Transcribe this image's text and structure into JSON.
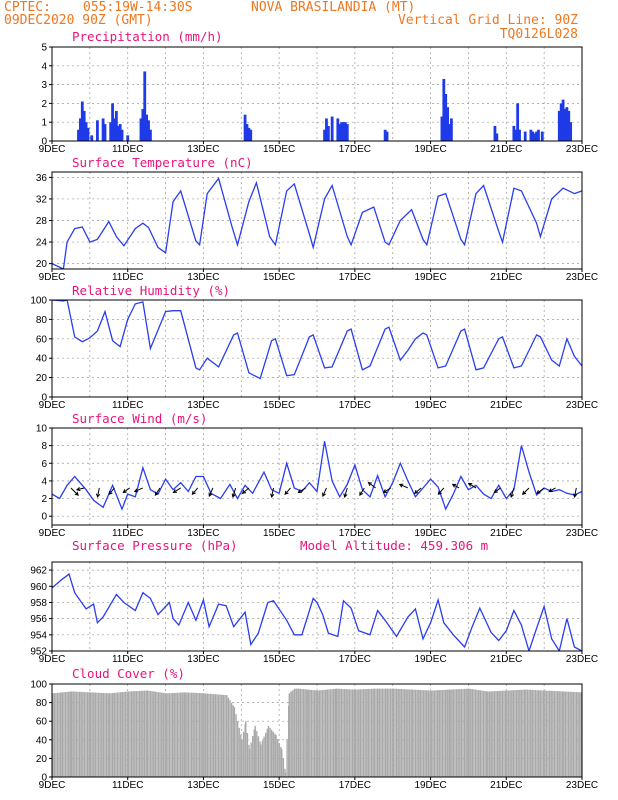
{
  "header": {
    "source": "CPTEC:",
    "coords": "055:19W-14:30S",
    "station": "NOVA BRASILANDIA (MT)",
    "run": "09DEC2020 90Z (GMT)",
    "grid_note": "Vertical Grid Line: 90Z",
    "model": "TQ0126L028"
  },
  "x_labels": [
    "9DEC",
    "11DEC",
    "13DEC",
    "15DEC",
    "17DEC",
    "19DEC",
    "21DEC",
    "23DEC"
  ],
  "extra_title": "Model Altitude: 459.306 m",
  "colors": {
    "header": "#ee7722",
    "title": "#e8147a",
    "series": "#2a3ef0",
    "bars": "#1f3be8",
    "cloud": "#a9a9a9"
  },
  "chart_data": [
    {
      "type": "bar",
      "title": "Precipitation (mm/h)",
      "ylim": [
        0,
        5
      ],
      "yticks": [
        0,
        1,
        2,
        3,
        4,
        5
      ],
      "x_unit": "days since 9DEC 00Z",
      "x": [
        0.7,
        0.75,
        0.8,
        0.85,
        0.9,
        0.95,
        1.05,
        1.2,
        1.35,
        1.4,
        1.55,
        1.6,
        1.65,
        1.7,
        1.75,
        1.8,
        1.85,
        2.0,
        2.35,
        2.4,
        2.45,
        2.5,
        2.55,
        2.6,
        5.1,
        5.15,
        5.2,
        5.25,
        7.2,
        7.25,
        7.3,
        7.4,
        7.55,
        7.6,
        7.65,
        7.7,
        7.75,
        7.8,
        8.8,
        8.85,
        10.3,
        10.35,
        10.4,
        10.45,
        10.5,
        10.55,
        11.7,
        11.75,
        12.2,
        12.25,
        12.3,
        12.35,
        12.5,
        12.65,
        12.7,
        12.75,
        12.8,
        12.85,
        12.95,
        13.4,
        13.45,
        13.5,
        13.55,
        13.6,
        13.65,
        13.7
      ],
      "values": [
        0.6,
        1.2,
        2.1,
        1.6,
        1.0,
        0.7,
        0.3,
        1.1,
        1.2,
        0.9,
        1.0,
        2.0,
        1.2,
        1.6,
        0.8,
        0.9,
        0.6,
        0.3,
        1.2,
        1.7,
        3.7,
        1.4,
        1.1,
        0.6,
        1.4,
        0.9,
        0.7,
        0.6,
        0.6,
        1.2,
        0.8,
        1.3,
        1.2,
        0.9,
        1.0,
        1.0,
        1.0,
        0.9,
        0.6,
        0.5,
        1.3,
        3.3,
        2.5,
        1.8,
        0.9,
        1.2,
        0.8,
        0.4,
        0.8,
        0.6,
        2.0,
        0.6,
        0.5,
        0.6,
        0.5,
        0.4,
        0.5,
        0.6,
        0.5,
        1.6,
        2.0,
        2.2,
        1.7,
        1.8,
        1.6,
        1.0
      ]
    },
    {
      "type": "line",
      "title": "Surface Temperature (nC)",
      "ylim": [
        19,
        37
      ],
      "yticks": [
        20,
        24,
        28,
        32,
        36
      ],
      "x_unit": "days since 9DEC 00Z",
      "x": [
        0.0,
        0.3,
        0.4,
        0.6,
        0.8,
        1.0,
        1.2,
        1.5,
        1.7,
        1.9,
        2.2,
        2.4,
        2.55,
        2.8,
        3.0,
        3.2,
        3.4,
        3.8,
        3.9,
        4.1,
        4.4,
        4.75,
        4.9,
        5.2,
        5.4,
        5.75,
        5.9,
        6.2,
        6.4,
        6.8,
        6.9,
        7.2,
        7.4,
        7.8,
        7.9,
        8.2,
        8.5,
        8.8,
        8.9,
        9.2,
        9.5,
        9.8,
        9.9,
        10.2,
        10.4,
        10.8,
        10.9,
        11.2,
        11.4,
        11.8,
        11.9,
        12.2,
        12.4,
        12.8,
        12.9,
        13.2,
        13.5,
        13.8,
        14.0
      ],
      "values": [
        20.0,
        19.0,
        24.0,
        26.5,
        26.8,
        24.0,
        24.5,
        27.8,
        25.0,
        23.3,
        26.5,
        27.5,
        26.7,
        23.0,
        22.0,
        31.5,
        33.5,
        24.2,
        23.5,
        33.0,
        35.8,
        27.0,
        23.5,
        31.5,
        35.0,
        25.0,
        23.5,
        33.5,
        34.8,
        25.5,
        23.0,
        32.0,
        34.5,
        25.0,
        23.5,
        29.5,
        30.5,
        24.0,
        23.5,
        28.0,
        30.0,
        24.5,
        23.5,
        32.5,
        33.0,
        24.5,
        23.5,
        33.0,
        34.5,
        26.0,
        24.0,
        34.0,
        33.5,
        27.5,
        25.0,
        32.0,
        34.0,
        33.0,
        33.5
      ]
    },
    {
      "type": "line",
      "title": "Relative Humidity (%)",
      "ylim": [
        0,
        100
      ],
      "yticks": [
        0,
        20,
        40,
        60,
        80,
        100
      ],
      "x_unit": "days since 9DEC 00Z",
      "x": [
        0.0,
        0.3,
        0.4,
        0.6,
        0.8,
        1.0,
        1.2,
        1.4,
        1.6,
        1.8,
        2.0,
        2.2,
        2.4,
        2.6,
        3.0,
        3.2,
        3.4,
        3.8,
        3.9,
        4.1,
        4.4,
        4.8,
        4.9,
        5.2,
        5.5,
        5.8,
        5.9,
        6.2,
        6.4,
        6.8,
        6.9,
        7.2,
        7.4,
        7.8,
        7.9,
        8.2,
        8.4,
        8.8,
        8.9,
        9.2,
        9.4,
        9.6,
        9.8,
        9.9,
        10.2,
        10.4,
        10.8,
        10.9,
        11.2,
        11.4,
        11.8,
        11.9,
        12.2,
        12.4,
        12.8,
        12.9,
        13.2,
        13.4,
        13.6,
        13.8,
        14.0
      ],
      "values": [
        100,
        99,
        100,
        62,
        57,
        61,
        68,
        88,
        58,
        52,
        80,
        96,
        98,
        50,
        88,
        89,
        89,
        30,
        28,
        40,
        31,
        64,
        66,
        25,
        19,
        58,
        60,
        22,
        23,
        62,
        64,
        30,
        31,
        68,
        70,
        28,
        32,
        70,
        72,
        38,
        48,
        60,
        66,
        64,
        30,
        32,
        68,
        70,
        28,
        30,
        60,
        62,
        30,
        32,
        64,
        62,
        38,
        32,
        60,
        42,
        32
      ]
    },
    {
      "type": "line",
      "title": "Surface Wind (m/s)",
      "ylim": [
        -1,
        10
      ],
      "yticks": [
        0,
        2,
        4,
        6,
        8,
        10
      ],
      "x_unit": "days since 9DEC 00Z",
      "x": [
        0.0,
        0.2,
        0.4,
        0.6,
        0.9,
        1.1,
        1.35,
        1.6,
        1.85,
        2.0,
        2.2,
        2.4,
        2.6,
        2.8,
        3.0,
        3.2,
        3.4,
        3.6,
        3.8,
        4.0,
        4.2,
        4.45,
        4.7,
        4.9,
        5.1,
        5.3,
        5.6,
        5.8,
        6.0,
        6.2,
        6.4,
        6.6,
        6.8,
        7.0,
        7.2,
        7.4,
        7.6,
        7.8,
        8.0,
        8.2,
        8.4,
        8.6,
        8.8,
        9.0,
        9.2,
        9.4,
        9.6,
        9.8,
        10.0,
        10.2,
        10.4,
        10.6,
        10.8,
        11.0,
        11.2,
        11.4,
        11.6,
        11.8,
        12.0,
        12.2,
        12.4,
        12.6,
        12.8,
        13.0,
        13.2,
        13.4,
        13.6,
        13.8,
        14.0
      ],
      "values": [
        2.5,
        2.0,
        3.5,
        4.5,
        3.0,
        1.8,
        1.0,
        3.5,
        0.8,
        2.5,
        2.2,
        5.5,
        3.0,
        2.5,
        4.2,
        3.0,
        3.8,
        2.8,
        4.5,
        4.5,
        2.6,
        2.0,
        3.6,
        2.0,
        3.5,
        2.6,
        5.0,
        3.0,
        2.6,
        6.0,
        3.2,
        2.8,
        3.8,
        2.8,
        8.5,
        4.0,
        2.2,
        3.6,
        5.8,
        3.0,
        2.2,
        4.6,
        2.2,
        3.8,
        6.0,
        4.0,
        2.2,
        3.2,
        4.2,
        3.3,
        0.8,
        2.5,
        4.5,
        3.0,
        3.5,
        2.5,
        2.0,
        3.5,
        2.0,
        3.0,
        8.0,
        5.0,
        2.4,
        3.2,
        2.8,
        3.0,
        2.6,
        2.4,
        2.8
      ],
      "barbs": [
        {
          "x": 0.5,
          "u": 0.8,
          "v": -0.8
        },
        {
          "x": 0.85,
          "u": -0.8,
          "v": -0.2
        },
        {
          "x": 1.25,
          "u": -0.2,
          "v": -1.0
        },
        {
          "x": 1.65,
          "u": -0.6,
          "v": -0.7
        },
        {
          "x": 2.05,
          "u": -0.7,
          "v": -0.5
        },
        {
          "x": 2.4,
          "u": -0.9,
          "v": -0.4
        },
        {
          "x": 2.85,
          "u": -0.5,
          "v": -0.8
        },
        {
          "x": 3.4,
          "u": -0.8,
          "v": -0.5
        },
        {
          "x": 3.85,
          "u": -0.6,
          "v": -0.7
        },
        {
          "x": 4.25,
          "u": -0.4,
          "v": -0.9
        },
        {
          "x": 4.85,
          "u": -0.3,
          "v": -1.0
        },
        {
          "x": 5.2,
          "u": -0.7,
          "v": -0.6
        },
        {
          "x": 5.85,
          "u": -0.2,
          "v": -1.0
        },
        {
          "x": 6.3,
          "u": -0.6,
          "v": -0.7
        },
        {
          "x": 6.7,
          "u": -0.8,
          "v": -0.5
        },
        {
          "x": 7.25,
          "u": -0.4,
          "v": -0.9
        },
        {
          "x": 7.8,
          "u": -0.3,
          "v": -1.0
        },
        {
          "x": 8.25,
          "u": -0.5,
          "v": -0.8
        },
        {
          "x": 8.55,
          "u": -0.8,
          "v": 0.6
        },
        {
          "x": 8.95,
          "u": -0.8,
          "v": -0.5
        },
        {
          "x": 9.4,
          "u": -0.9,
          "v": 0.4
        },
        {
          "x": 9.75,
          "u": -0.7,
          "v": -0.6
        },
        {
          "x": 10.35,
          "u": -0.6,
          "v": -0.7
        },
        {
          "x": 10.75,
          "u": -0.7,
          "v": 0.4
        },
        {
          "x": 11.2,
          "u": -0.8,
          "v": 0.5
        },
        {
          "x": 11.85,
          "u": -0.7,
          "v": -0.5
        },
        {
          "x": 12.2,
          "u": -0.3,
          "v": -1.0
        },
        {
          "x": 12.6,
          "u": -0.7,
          "v": -0.7
        },
        {
          "x": 13.0,
          "u": -0.8,
          "v": -0.6
        },
        {
          "x": 13.3,
          "u": -0.7,
          "v": -0.4
        },
        {
          "x": 13.85,
          "u": -0.2,
          "v": -1.0
        }
      ]
    },
    {
      "type": "line",
      "title": "Surface Pressure (hPa)",
      "ylim": [
        952,
        963
      ],
      "yticks": [
        952,
        954,
        956,
        958,
        960,
        962
      ],
      "x_unit": "days since 9DEC 00Z",
      "x": [
        0.0,
        0.25,
        0.45,
        0.6,
        0.9,
        1.1,
        1.2,
        1.35,
        1.7,
        1.9,
        2.2,
        2.4,
        2.6,
        2.8,
        3.1,
        3.2,
        3.35,
        3.6,
        3.8,
        4.0,
        4.15,
        4.4,
        4.6,
        4.8,
        5.1,
        5.25,
        5.45,
        5.7,
        5.85,
        6.2,
        6.4,
        6.6,
        6.9,
        7.0,
        7.15,
        7.3,
        7.55,
        7.7,
        7.9,
        8.1,
        8.4,
        8.6,
        8.8,
        9.1,
        9.4,
        9.6,
        9.8,
        10.0,
        10.2,
        10.35,
        10.6,
        10.9,
        11.1,
        11.3,
        11.6,
        11.8,
        12.0,
        12.2,
        12.4,
        12.6,
        12.8,
        13.0,
        13.2,
        13.4,
        13.6,
        13.8,
        14.0
      ],
      "values": [
        959.8,
        960.8,
        961.5,
        959.2,
        957.2,
        957.8,
        955.5,
        956.2,
        959.0,
        958.0,
        957.0,
        959.2,
        958.5,
        956.5,
        958.0,
        956.0,
        955.2,
        958.0,
        955.8,
        958.3,
        955.0,
        957.8,
        957.6,
        955.0,
        956.8,
        952.8,
        954.2,
        958.0,
        958.2,
        955.8,
        954.0,
        954.0,
        958.5,
        958.0,
        956.5,
        954.2,
        953.8,
        958.2,
        957.3,
        954.5,
        954.0,
        957.0,
        955.8,
        953.8,
        956.2,
        957.2,
        953.5,
        955.5,
        958.3,
        955.5,
        954.0,
        952.5,
        955.0,
        957.3,
        954.3,
        953.3,
        954.5,
        957.0,
        955.2,
        952.0,
        954.8,
        957.5,
        953.5,
        952.0,
        956.0,
        952.5,
        952.0
      ]
    },
    {
      "type": "area",
      "title": "Cloud Cover (%)",
      "ylim": [
        0,
        100
      ],
      "yticks": [
        0,
        20,
        40,
        60,
        80,
        100
      ],
      "x_unit": "days since 9DEC 00Z",
      "x": [
        0.0,
        0.5,
        1.0,
        1.5,
        2.0,
        2.5,
        3.0,
        3.5,
        4.0,
        4.6,
        4.8,
        5.0,
        5.1,
        5.2,
        5.35,
        5.5,
        5.7,
        5.9,
        6.05,
        6.15,
        6.25,
        6.3,
        6.4,
        6.5,
        6.75,
        7.0,
        7.5,
        8.0,
        8.5,
        9.0,
        9.5,
        10.0,
        10.5,
        11.0,
        11.5,
        12.0,
        12.5,
        13.0,
        13.5,
        14.0
      ],
      "values": [
        90,
        92,
        91,
        90,
        92,
        93,
        90,
        91,
        90,
        88,
        75,
        40,
        60,
        30,
        55,
        35,
        55,
        45,
        30,
        5,
        90,
        92,
        95,
        95,
        94,
        93,
        95,
        94,
        95,
        95,
        94,
        93,
        94,
        95,
        92,
        93,
        94,
        93,
        92,
        91
      ]
    }
  ]
}
